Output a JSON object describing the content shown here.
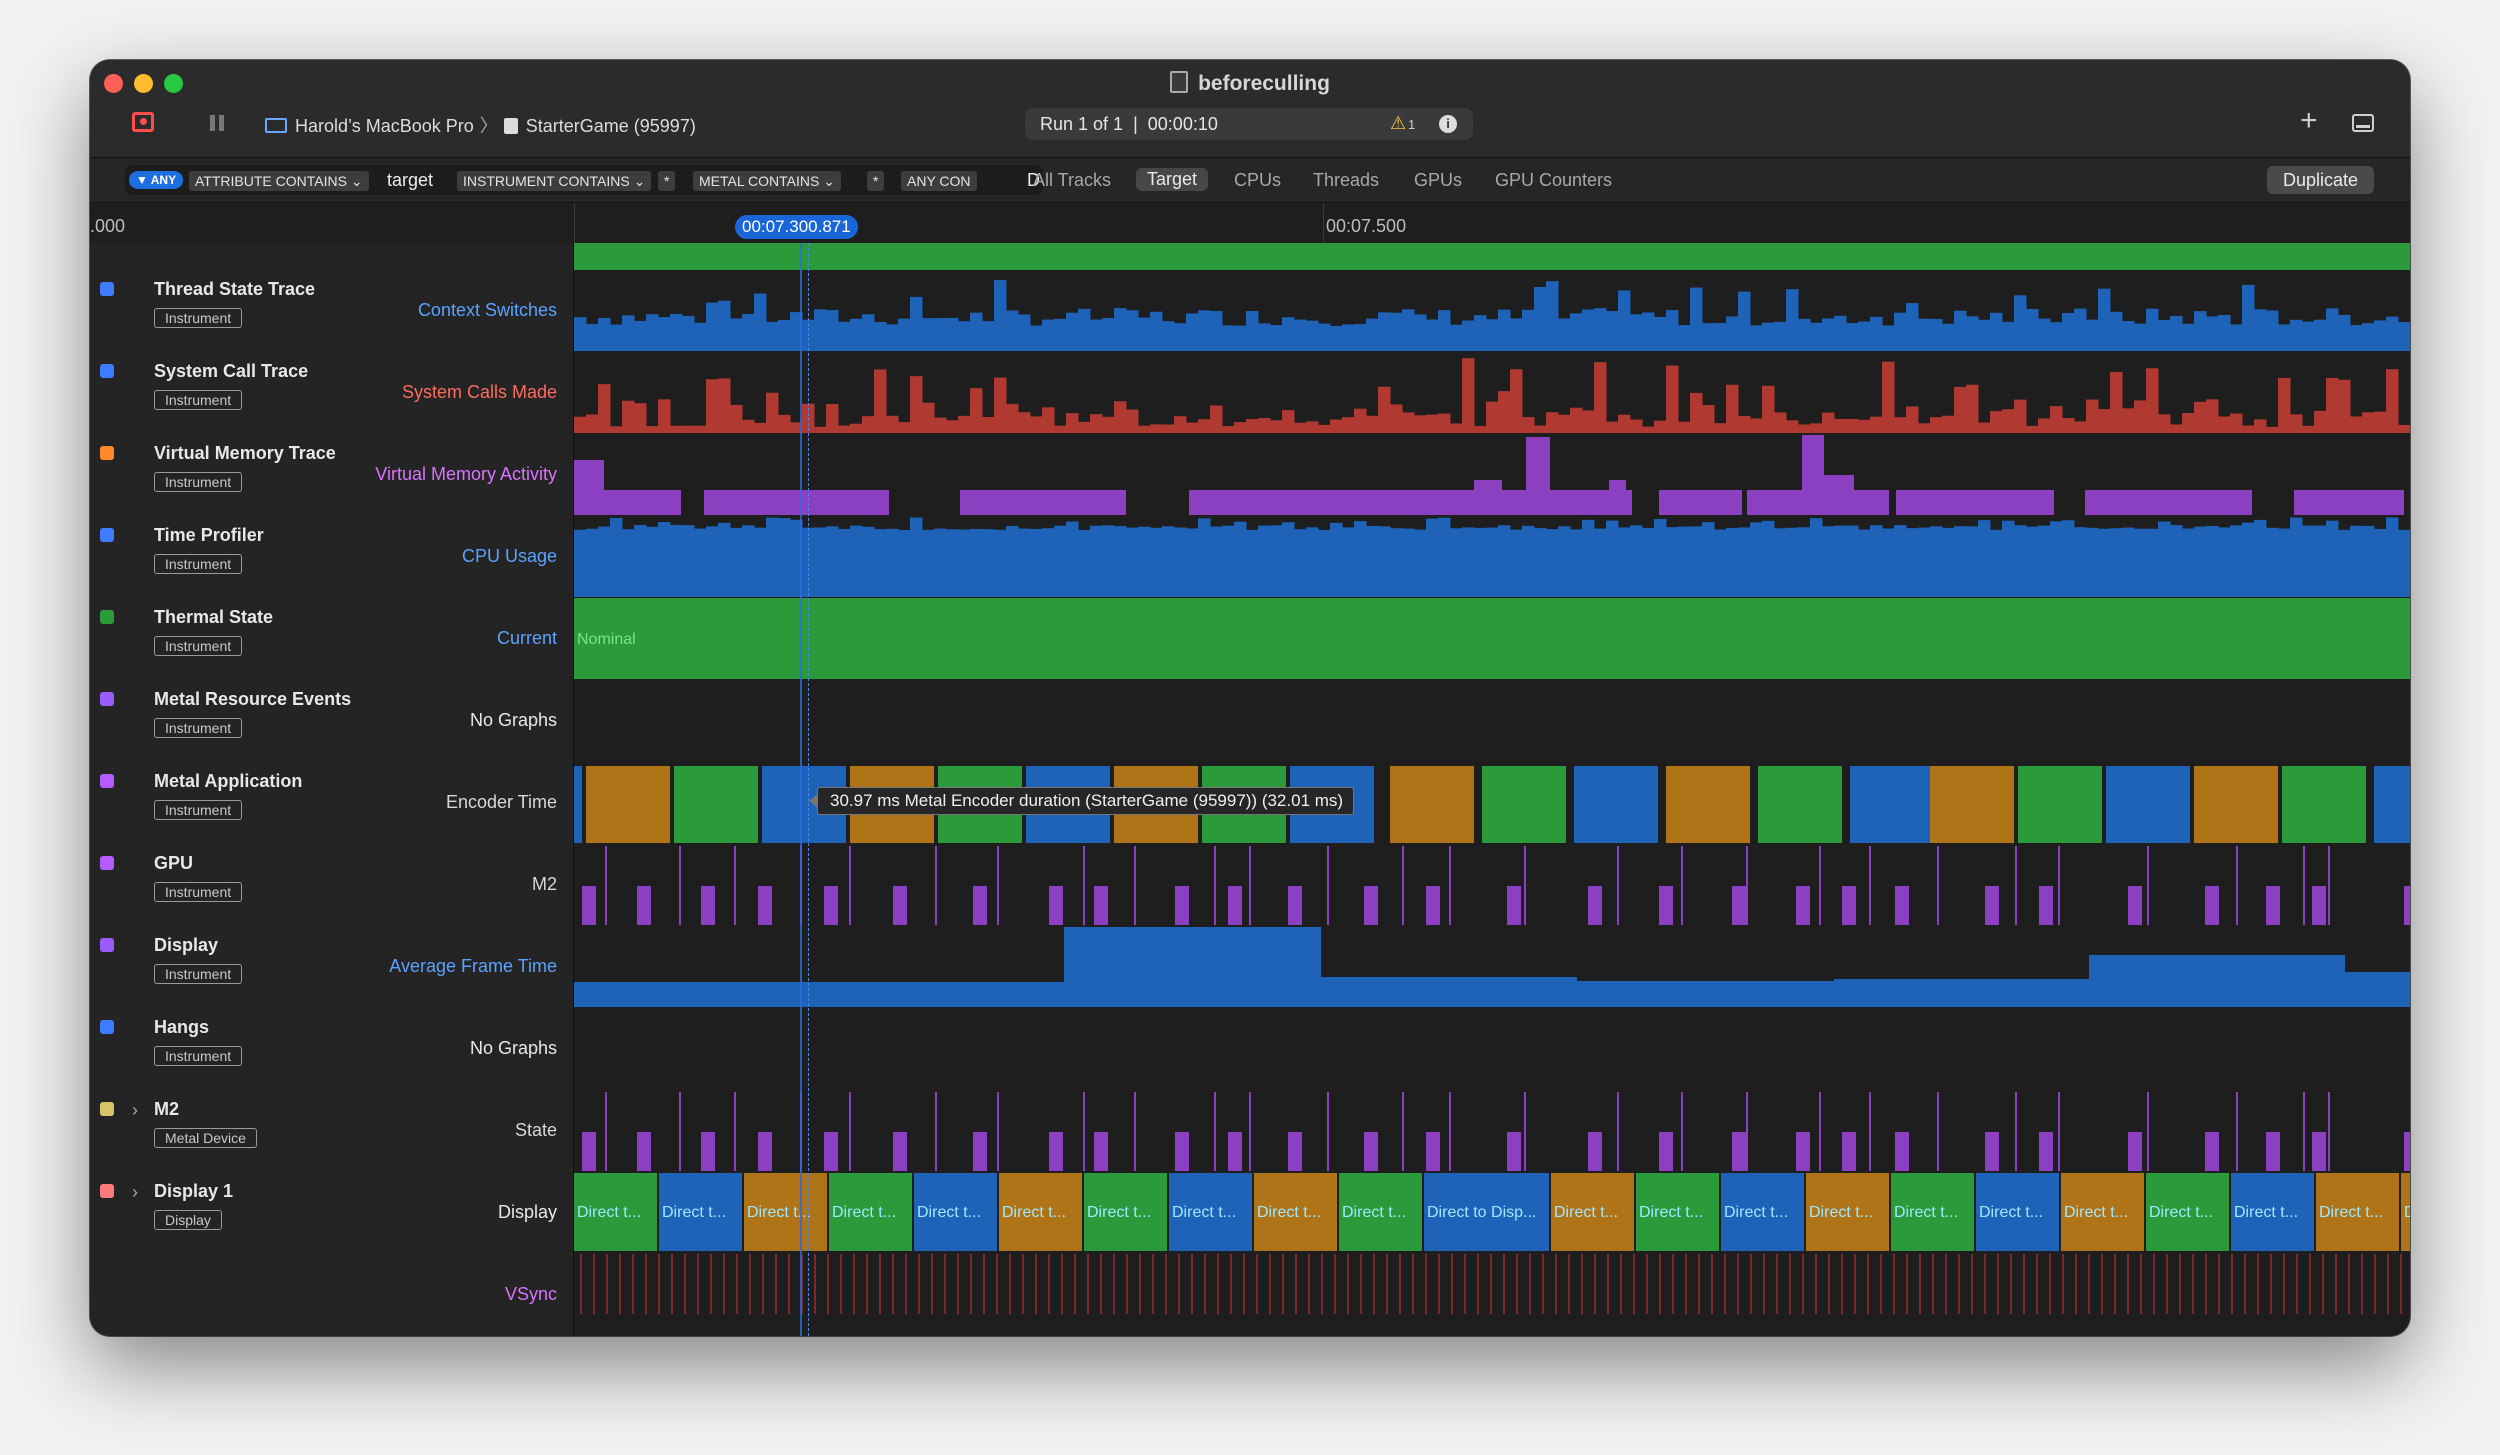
{
  "window": {
    "title": "beforeculling",
    "device": "Harold’s MacBook Pro",
    "process": "StarterGame (95997)",
    "run_label": "Run 1 of 1",
    "run_sep": "|",
    "run_time": "00:00:10",
    "warning_count": "1"
  },
  "filter": {
    "any_label": "ANY",
    "tokens": [
      {
        "label": "ATTRIBUTE CONTAINS ⌄",
        "value": "target"
      },
      {
        "label": "INSTRUMENT CONTAINS ⌄",
        "value": "*"
      },
      {
        "label": "METAL CONTAINS ⌄",
        "value": "*"
      },
      {
        "label": "ANY CON",
        "value": "D"
      }
    ],
    "scopes": [
      "All Tracks",
      "Target",
      "CPUs",
      "Threads",
      "GPUs",
      "GPU Counters"
    ],
    "active_scope": "Target",
    "duplicate_label": "Duplicate"
  },
  "ruler": {
    "left_label": ".000",
    "playhead": "00:07.300.871",
    "mark": "00:07.500"
  },
  "tracks": [
    {
      "name": "Thread State Trace",
      "type": "Instrument",
      "graph": "Context Switches",
      "color": "#5aa3ff",
      "icon": "thread-state-icon"
    },
    {
      "name": "System Call Trace",
      "type": "Instrument",
      "graph": "System Calls Made",
      "color": "#ff6b5e",
      "icon": "system-call-icon"
    },
    {
      "name": "Virtual Memory Trace",
      "type": "Instrument",
      "graph": "Virtual Memory Activity",
      "color": "#d873ff",
      "icon": "virtual-memory-icon"
    },
    {
      "name": "Time Profiler",
      "type": "Instrument",
      "graph": "CPU Usage",
      "color": "#5aa3ff",
      "icon": "time-profiler-icon"
    },
    {
      "name": "Thermal State",
      "type": "Instrument",
      "graph": "Current",
      "color": "#5aa3ff",
      "icon": "thermometer-icon"
    },
    {
      "name": "Metal Resource Events",
      "type": "Instrument",
      "graph": "No Graphs",
      "color": "#e8e8e8",
      "icon": "metal-resource-icon"
    },
    {
      "name": "Metal Application",
      "type": "Instrument",
      "graph": "Encoder Time",
      "color": "#d8d8d8",
      "icon": "metal-application-icon"
    },
    {
      "name": "GPU",
      "type": "Instrument",
      "graph": "M2",
      "color": "#d8d8d8",
      "icon": "gpu-icon"
    },
    {
      "name": "Display",
      "type": "Instrument",
      "graph": "Average Frame Time",
      "color": "#5aa3ff",
      "icon": "display-icon"
    },
    {
      "name": "Hangs",
      "type": "Instrument",
      "graph": "No Graphs",
      "color": "#e8e8e8",
      "icon": "hourglass-icon"
    },
    {
      "name": "M2",
      "type": "Metal Device",
      "graph": "State",
      "color": "#d8d8d8",
      "icon": "metal-device-icon"
    },
    {
      "name": "Display 1",
      "type": "Display",
      "graph": "Display",
      "color": "#e8e8e8",
      "icon": "display-device-icon",
      "graph2": "VSync",
      "graph2_color": "#d873ff"
    }
  ],
  "thermal_value": "Nominal",
  "tooltip": "30.97 ms Metal Encoder duration (StarterGame (95997)) (32.01 ms)",
  "display_labels": [
    "Direct t...",
    "Direct t...",
    "Direct t...",
    "Direct t...",
    "Direct t...",
    "Direct t...",
    "Direct t...",
    "Direct t...",
    "Direct t...",
    "Direct t...",
    "Direct to Disp...",
    "Direct t...",
    "Direct t...",
    "Direct t...",
    "Direct t...",
    "Direct t...",
    "Direct t...",
    "Direct t...",
    "Direct t...",
    "Direct t...",
    "Direct t...",
    "Direct t..."
  ],
  "colors": {
    "green": "#2b9a3a",
    "blue": "#1f63b8",
    "orange": "#b07418",
    "red": "#b03a32",
    "purple": "#8b3fc1",
    "accent": "#1a66d8"
  }
}
